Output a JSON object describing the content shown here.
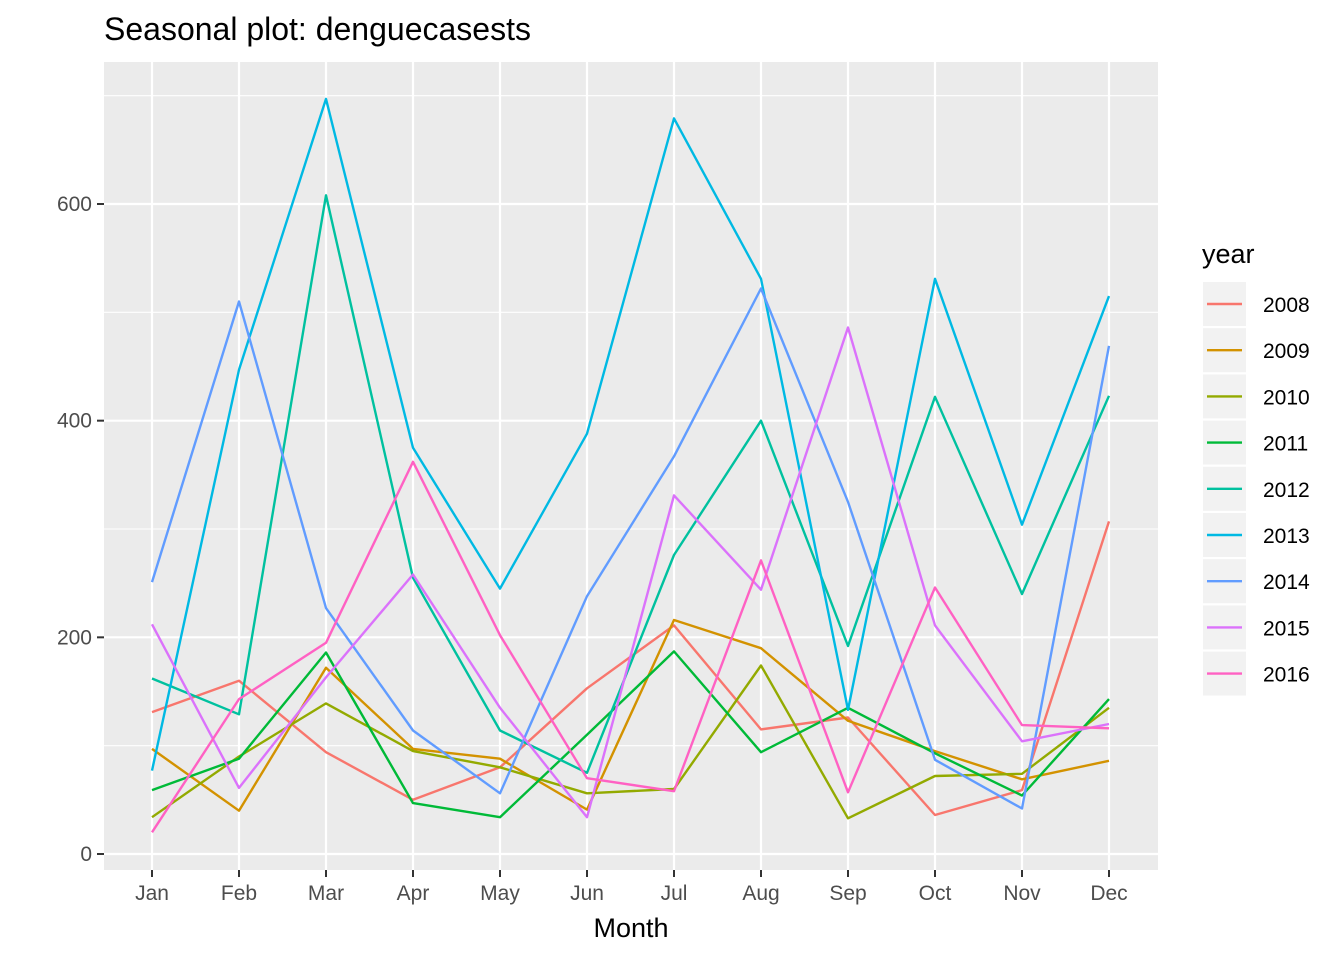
{
  "chart_data": {
    "type": "line",
    "title": "Seasonal plot: denguecasests",
    "xlabel": "Month",
    "ylabel": "",
    "ylim": [
      0,
      700
    ],
    "y_ticks": [
      0,
      200,
      400,
      600
    ],
    "categories": [
      "Jan",
      "Feb",
      "Mar",
      "Apr",
      "May",
      "Jun",
      "Jul",
      "Aug",
      "Sep",
      "Oct",
      "Nov",
      "Dec"
    ],
    "legend_title": "year",
    "legend_position": "right",
    "grid": true,
    "background": "#ebebeb",
    "series": [
      {
        "name": "2008",
        "color": "#F8766D",
        "values": [
          131,
          160,
          94,
          50,
          80,
          153,
          211,
          115,
          126,
          36,
          59,
          307
        ]
      },
      {
        "name": "2009",
        "color": "#D39200",
        "values": [
          97,
          40,
          172,
          97,
          88,
          41,
          216,
          190,
          123,
          95,
          69,
          86
        ]
      },
      {
        "name": "2010",
        "color": "#93AA00",
        "values": [
          34,
          90,
          139,
          95,
          80,
          56,
          60,
          174,
          33,
          72,
          74,
          135
        ]
      },
      {
        "name": "2011",
        "color": "#00BA38",
        "values": [
          59,
          88,
          186,
          47,
          34,
          110,
          187,
          94,
          135,
          93,
          54,
          143
        ]
      },
      {
        "name": "2012",
        "color": "#00C19F",
        "values": [
          162,
          129,
          608,
          255,
          114,
          75,
          276,
          400,
          192,
          422,
          240,
          423
        ]
      },
      {
        "name": "2013",
        "color": "#00B9E3",
        "values": [
          77,
          447,
          697,
          375,
          245,
          388,
          679,
          531,
          133,
          531,
          304,
          515
        ]
      },
      {
        "name": "2014",
        "color": "#619CFF",
        "values": [
          251,
          510,
          227,
          114,
          56,
          238,
          367,
          522,
          325,
          87,
          42,
          469
        ]
      },
      {
        "name": "2015",
        "color": "#DB72FB",
        "values": [
          212,
          61,
          163,
          258,
          135,
          34,
          331,
          244,
          486,
          211,
          104,
          120
        ]
      },
      {
        "name": "2016",
        "color": "#FF61C3",
        "values": [
          20,
          143,
          195,
          362,
          202,
          70,
          58,
          271,
          57,
          246,
          119,
          116
        ]
      }
    ]
  }
}
